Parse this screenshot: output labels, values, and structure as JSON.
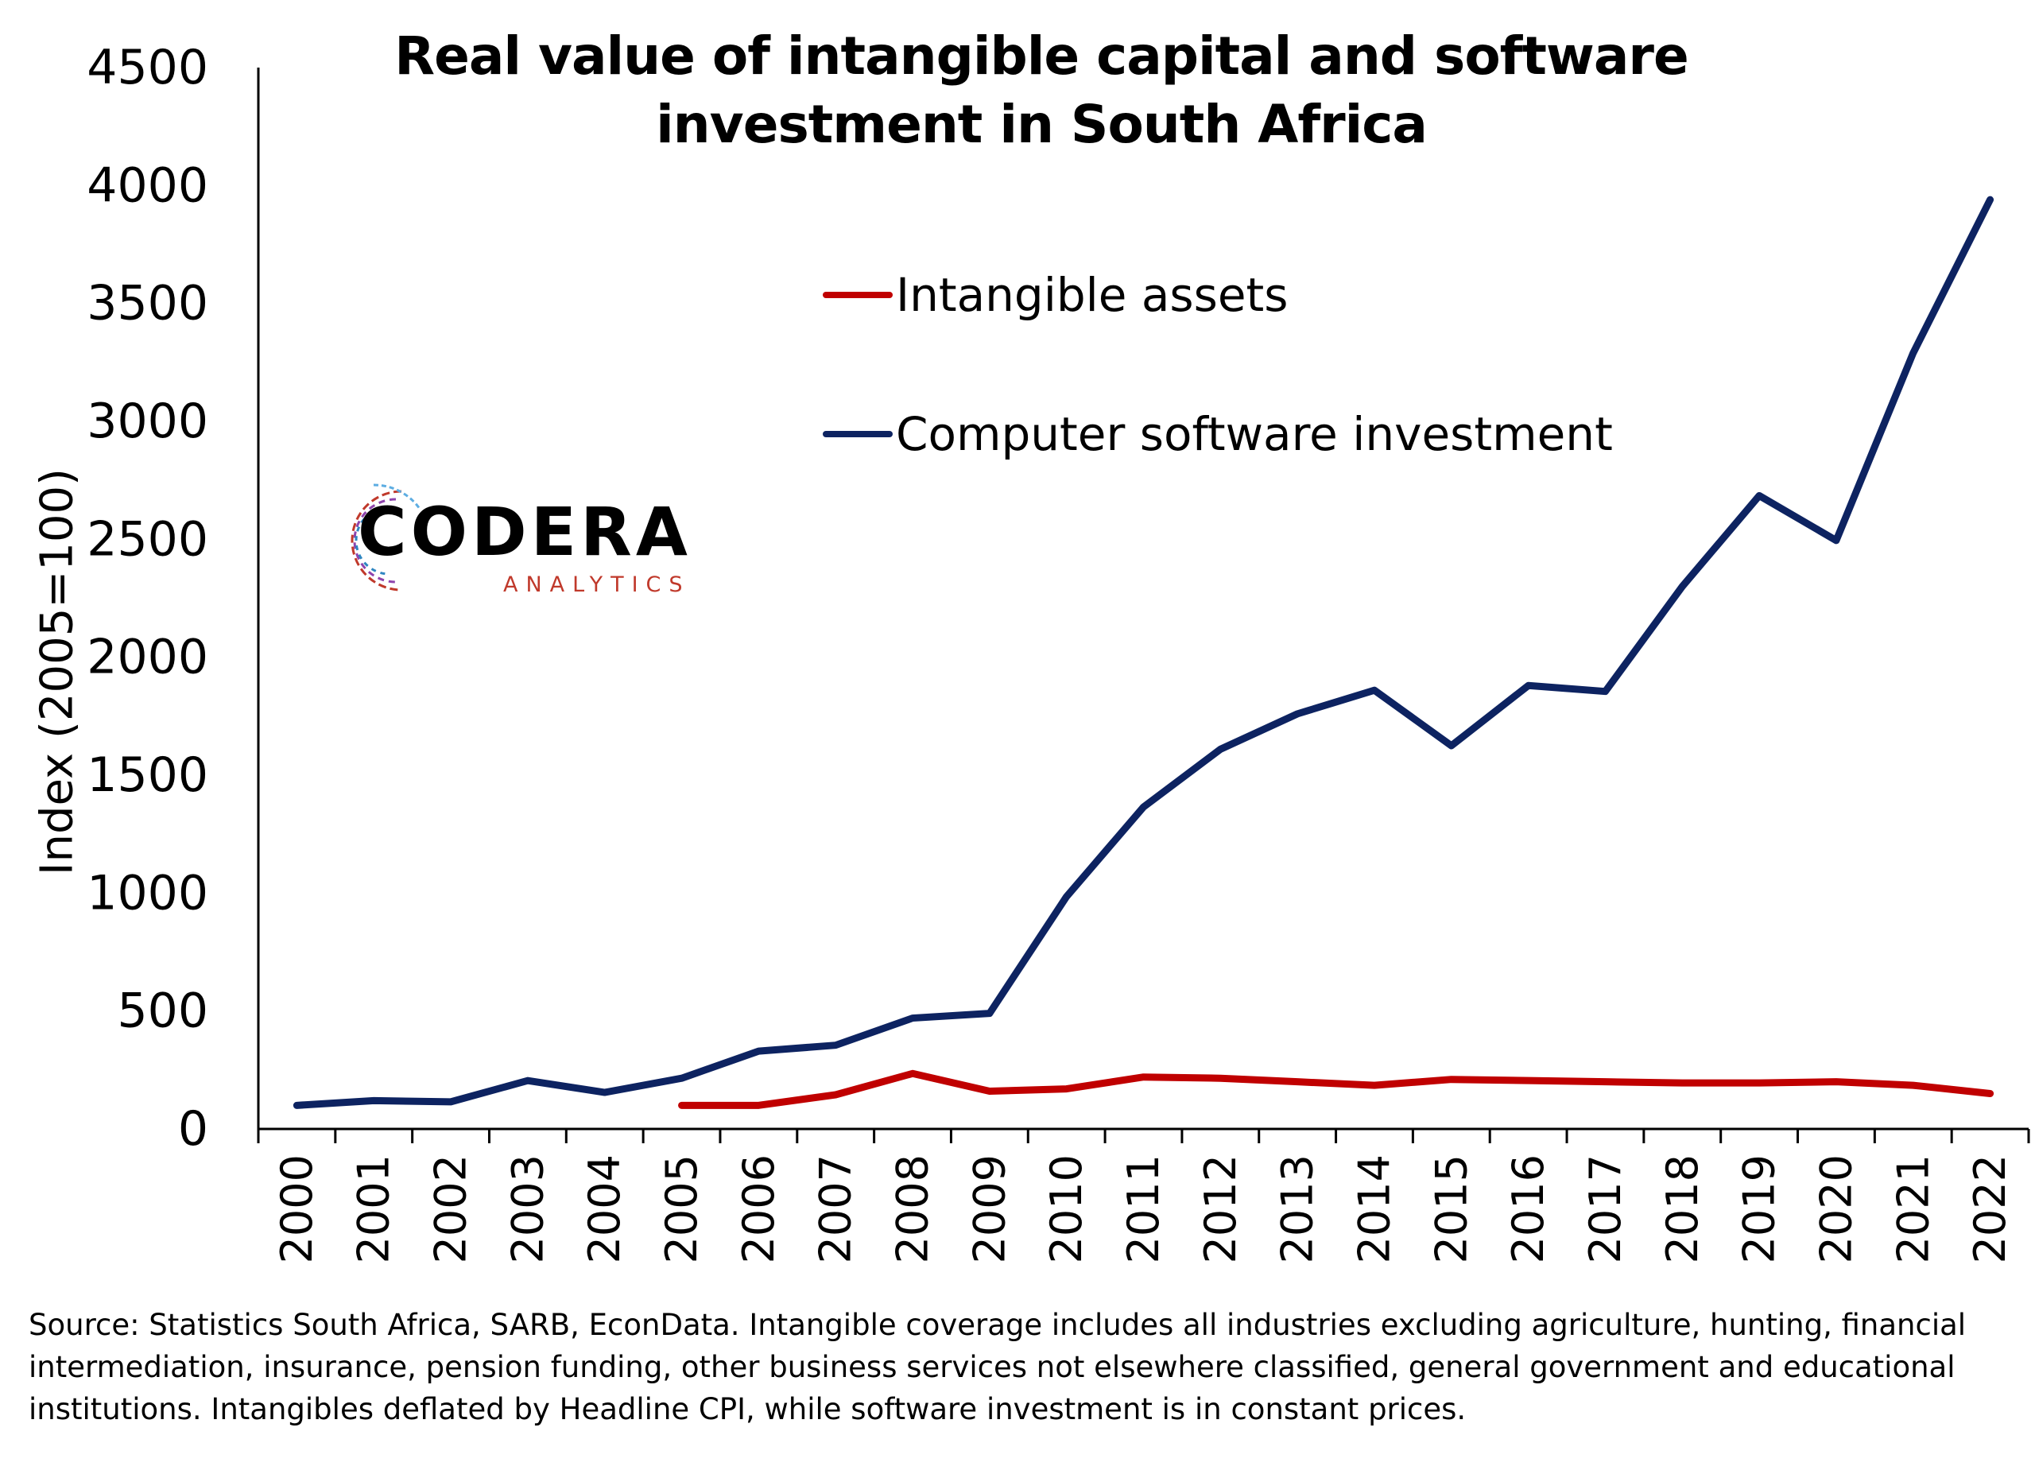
{
  "title": "Real value of intangible capital and software investment in South Africa",
  "source": "Source: Statistics South Africa, SARB, EconData. Intangible coverage includes all industries excluding agriculture, hunting, financial intermediation, insurance, pension funding, other business services not elsewhere classified, general government and educational institutions. Intangibles deflated by Headline CPI, while software investment is in constant prices.",
  "logo": {
    "name": "CODERA",
    "sub": "ANALYTICS"
  },
  "colors": {
    "intangible": "#c00000",
    "software": "#0d2361",
    "axis": "#000000"
  },
  "chart_data": {
    "type": "line",
    "title": "Real value of intangible capital and software investment in South Africa",
    "xlabel": "",
    "ylabel": "Index (2005=100)",
    "ylim": [
      0,
      4500
    ],
    "yticks": [
      0,
      500,
      1000,
      1500,
      2000,
      2500,
      3000,
      3500,
      4000,
      4500
    ],
    "categories": [
      "2000",
      "2001",
      "2002",
      "2003",
      "2004",
      "2005",
      "2006",
      "2007",
      "2008",
      "2009",
      "2010",
      "2011",
      "2012",
      "2013",
      "2014",
      "2015",
      "2016",
      "2017",
      "2018",
      "2019",
      "2020",
      "2021",
      "2022"
    ],
    "grid": false,
    "legend_position": "top-center",
    "series": [
      {
        "name": "Intangible assets",
        "color": "#c00000",
        "values": [
          null,
          null,
          null,
          null,
          null,
          100,
          100,
          145,
          235,
          160,
          170,
          220,
          215,
          200,
          185,
          210,
          205,
          200,
          195,
          195,
          200,
          185,
          150
        ]
      },
      {
        "name": "Computer software investment",
        "color": "#0d2361",
        "values": [
          100,
          120,
          115,
          205,
          155,
          215,
          330,
          355,
          470,
          490,
          985,
          1365,
          1610,
          1760,
          1860,
          1625,
          1880,
          1855,
          2300,
          2685,
          2495,
          3290,
          3940
        ]
      }
    ]
  }
}
